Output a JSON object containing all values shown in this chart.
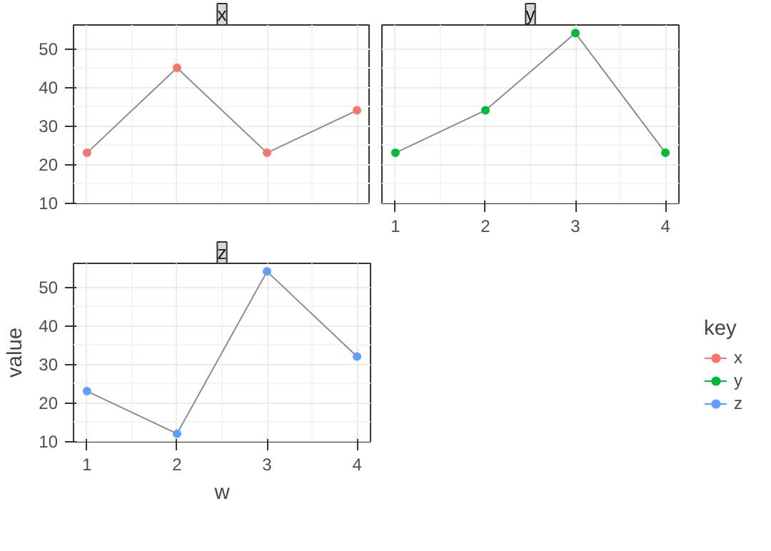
{
  "chart_data": [
    {
      "type": "line",
      "title": "x",
      "x": [
        1,
        2,
        3,
        4
      ],
      "series": [
        {
          "name": "x",
          "color": "#f8766d",
          "values": [
            23,
            45,
            23,
            34
          ]
        }
      ],
      "xlim": [
        0.85,
        4.15
      ],
      "ylim": [
        9.9,
        56.1
      ],
      "xticks": [
        1,
        2,
        3,
        4
      ],
      "yticks": [
        10,
        20,
        30,
        40,
        50
      ],
      "tick_labels": "y",
      "grid": true,
      "marker": "circle",
      "line_style": "solid",
      "legend": "right",
      "legend_title": "key"
    },
    {
      "type": "line",
      "title": "y",
      "x": [
        1,
        2,
        3,
        4
      ],
      "series": [
        {
          "name": "y",
          "color": "#00ba38",
          "values": [
            23,
            34,
            54,
            23
          ]
        }
      ],
      "xlim": [
        0.85,
        4.15
      ],
      "ylim": [
        9.9,
        56.1
      ],
      "xticks": [
        1,
        2,
        3,
        4
      ],
      "yticks": [
        10,
        20,
        30,
        40,
        50
      ],
      "tick_labels": "x",
      "grid": true,
      "marker": "circle",
      "line_style": "solid",
      "legend": "right"
    },
    {
      "type": "line",
      "title": "z",
      "x": [
        1,
        2,
        3,
        4
      ],
      "series": [
        {
          "name": "z",
          "color": "#619cff",
          "values": [
            23,
            12,
            54,
            32
          ]
        }
      ],
      "xlim": [
        0.85,
        4.15
      ],
      "ylim": [
        9.9,
        56.1
      ],
      "xticks": [
        1,
        2,
        3,
        4
      ],
      "yticks": [
        10,
        20,
        30,
        40,
        50
      ],
      "xlabel": "w",
      "ylabel": "value",
      "grid": true,
      "marker": "circle",
      "line_style": "solid",
      "legend": "right"
    }
  ]
}
